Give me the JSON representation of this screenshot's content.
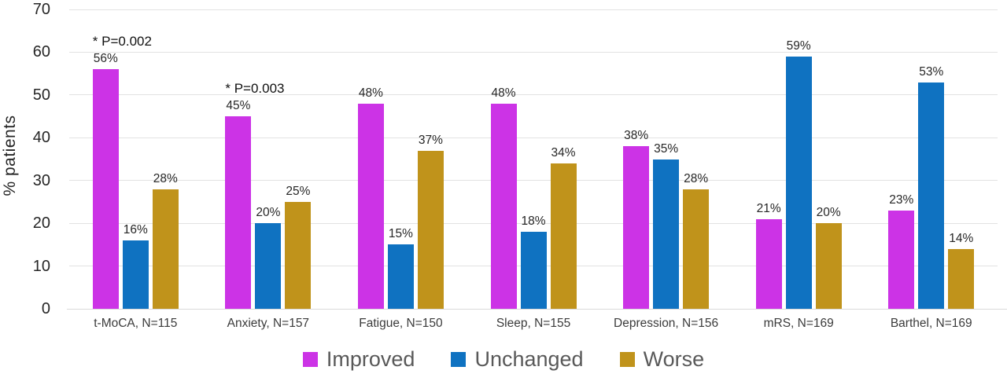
{
  "chart_data": {
    "type": "bar",
    "title": "",
    "ylabel": "% patients",
    "xlabel": "",
    "ylim": [
      0,
      70
    ],
    "ytick_step": 10,
    "grid": true,
    "legend_position": "bottom",
    "value_suffix": "%",
    "categories": [
      "t-MoCA, N=115",
      "Anxiety, N=157",
      "Fatigue, N=150",
      "Sleep, N=155",
      "Depression, N=156",
      "mRS, N=169",
      "Barthel, N=169"
    ],
    "series": [
      {
        "name": "Improved",
        "color": "#cc33e6",
        "values": [
          56,
          45,
          48,
          48,
          38,
          21,
          23
        ]
      },
      {
        "name": "Unchanged",
        "color": "#0f72c1",
        "values": [
          16,
          20,
          15,
          18,
          35,
          59,
          53
        ]
      },
      {
        "name": "Worse",
        "color": "#c0931b",
        "values": [
          28,
          25,
          37,
          34,
          28,
          20,
          14
        ]
      }
    ],
    "annotations": [
      {
        "category_index": 0,
        "series_index": 0,
        "text": "* P=0.002"
      },
      {
        "category_index": 1,
        "series_index": 0,
        "text": "* P=0.003"
      }
    ]
  },
  "colors": {
    "grid": "#e2e2e2",
    "axis_text": "#262626",
    "category_text": "#3b3b3b",
    "legend_text": "#595959",
    "background": "#ffffff"
  }
}
